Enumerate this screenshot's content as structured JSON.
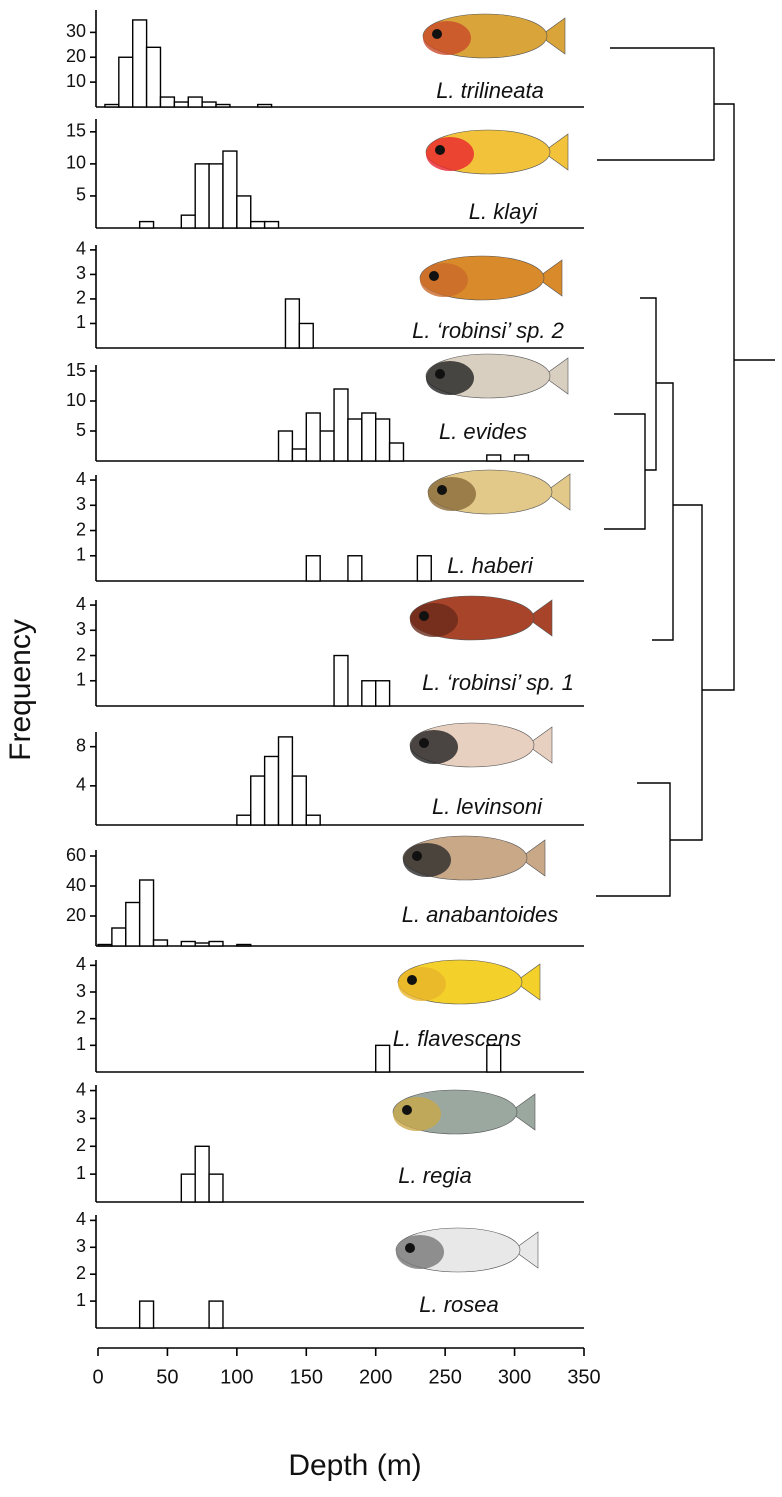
{
  "chart_data": {
    "type": "histogram",
    "xlabel": "Depth (m)",
    "ylabel": "Frequency",
    "xlim": [
      0,
      350
    ],
    "xticks": [
      0,
      50,
      100,
      150,
      200,
      250,
      300,
      350
    ],
    "panels": [
      {
        "name": "L. trilineata",
        "bins": [
          5,
          15,
          25,
          35,
          45,
          55,
          65,
          75,
          85,
          95,
          105,
          115,
          125
        ],
        "values": [
          1,
          20,
          35,
          24,
          4,
          2,
          4,
          2,
          1,
          0,
          0,
          1
        ],
        "ylim": [
          0,
          39
        ],
        "yticks": [
          10,
          20,
          30
        ]
      },
      {
        "name": "L. klayi",
        "bins": [
          30,
          40,
          50,
          60,
          70,
          80,
          90,
          100,
          110,
          120,
          130
        ],
        "values": [
          1,
          0,
          0,
          2,
          10,
          10,
          12,
          5,
          1,
          1
        ],
        "ylim": [
          0,
          17
        ],
        "yticks": [
          5,
          10,
          15
        ]
      },
      {
        "name": "L. ‘robinsi’ sp. 2",
        "bins": [
          135,
          145,
          155
        ],
        "values": [
          2,
          1
        ],
        "ylim": [
          0,
          4.2
        ],
        "yticks": [
          1,
          2,
          3,
          4
        ]
      },
      {
        "name": "L. evides",
        "bins": [
          130,
          140,
          150,
          160,
          170,
          180,
          190,
          200,
          210,
          220,
          230,
          240,
          250,
          260,
          270,
          280,
          290,
          300,
          310
        ],
        "values": [
          5,
          2,
          8,
          5,
          12,
          7,
          8,
          7,
          3,
          0,
          0,
          0,
          0,
          0,
          0,
          1,
          0,
          1
        ],
        "ylim": [
          0,
          16
        ],
        "yticks": [
          5,
          10,
          15
        ]
      },
      {
        "name": "L. haberi",
        "bins": [
          150,
          160,
          170,
          180,
          190,
          200,
          210,
          220,
          230,
          240
        ],
        "values": [
          1,
          0,
          0,
          1,
          0,
          0,
          0,
          0,
          1
        ],
        "ylim": [
          0,
          4.2
        ],
        "yticks": [
          1,
          2,
          3,
          4
        ]
      },
      {
        "name": "L. ‘robinsi’ sp. 1",
        "bins": [
          170,
          180,
          190,
          200,
          210
        ],
        "values": [
          2,
          0,
          1,
          1
        ],
        "ylim": [
          0,
          4.2
        ],
        "yticks": [
          1,
          2,
          3,
          4
        ]
      },
      {
        "name": "L. levinsoni",
        "bins": [
          100,
          110,
          120,
          130,
          140,
          150,
          160
        ],
        "values": [
          1,
          5,
          7,
          9,
          5,
          1
        ],
        "ylim": [
          0,
          9.5
        ],
        "yticks": [
          4,
          8
        ]
      },
      {
        "name": "L. anabantoides",
        "bins": [
          0,
          10,
          20,
          30,
          40,
          50,
          60,
          70,
          80,
          90,
          100,
          110
        ],
        "values": [
          1,
          12,
          29,
          44,
          4,
          0,
          3,
          2,
          3,
          0,
          1
        ],
        "ylim": [
          0,
          64
        ],
        "yticks": [
          20,
          40,
          60
        ]
      },
      {
        "name": "L. flavescens",
        "bins": [
          200,
          210,
          220,
          230,
          240,
          250,
          260,
          270,
          280,
          290
        ],
        "values": [
          1,
          0,
          0,
          0,
          0,
          0,
          0,
          0,
          1
        ],
        "ylim": [
          0,
          4.2
        ],
        "yticks": [
          1,
          2,
          3,
          4
        ]
      },
      {
        "name": "L. regia",
        "bins": [
          60,
          70,
          80,
          90
        ],
        "values": [
          1,
          2,
          1
        ],
        "ylim": [
          0,
          4.2
        ],
        "yticks": [
          1,
          2,
          3,
          4
        ]
      },
      {
        "name": "L. rosea",
        "bins": [
          30,
          40,
          50,
          60,
          70,
          80,
          90
        ],
        "values": [
          1,
          0,
          0,
          0,
          0,
          1
        ],
        "ylim": [
          0,
          4.2
        ],
        "yticks": [
          1,
          2,
          3,
          4
        ]
      }
    ]
  }
}
